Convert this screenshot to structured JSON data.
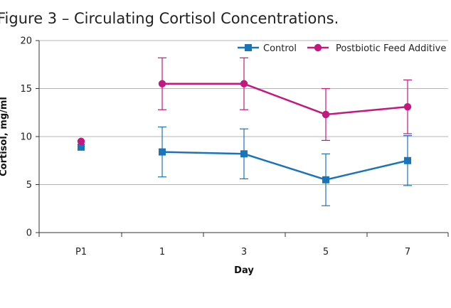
{
  "figure_title": "Figure 3 – Circulating Cortisol Concentrations.",
  "chart_data": {
    "type": "line",
    "title": "Figure 3 – Circulating Cortisol Concentrations.",
    "xlabel": "Day",
    "ylabel": "Cortisol, mg/ml",
    "categories": [
      "P1",
      "1",
      "3",
      "5",
      "7"
    ],
    "ylim": [
      0,
      20
    ],
    "yticks": [
      0,
      5,
      10,
      15,
      20
    ],
    "grid": "horizontal",
    "legend_position": "top-right",
    "series": [
      {
        "name": "Control",
        "color": "#1a75b8",
        "marker": "square",
        "values": [
          8.9,
          8.4,
          8.2,
          5.5,
          7.5
        ],
        "error": [
          null,
          2.6,
          2.6,
          2.7,
          2.6
        ],
        "connected_from_index": 1
      },
      {
        "name": "Postbiotic Feed Additive",
        "color": "#c5187f",
        "marker": "circle",
        "values": [
          9.5,
          15.5,
          15.5,
          12.3,
          13.1
        ],
        "error": [
          null,
          2.7,
          2.7,
          2.7,
          2.8
        ],
        "connected_from_index": 1
      }
    ]
  }
}
